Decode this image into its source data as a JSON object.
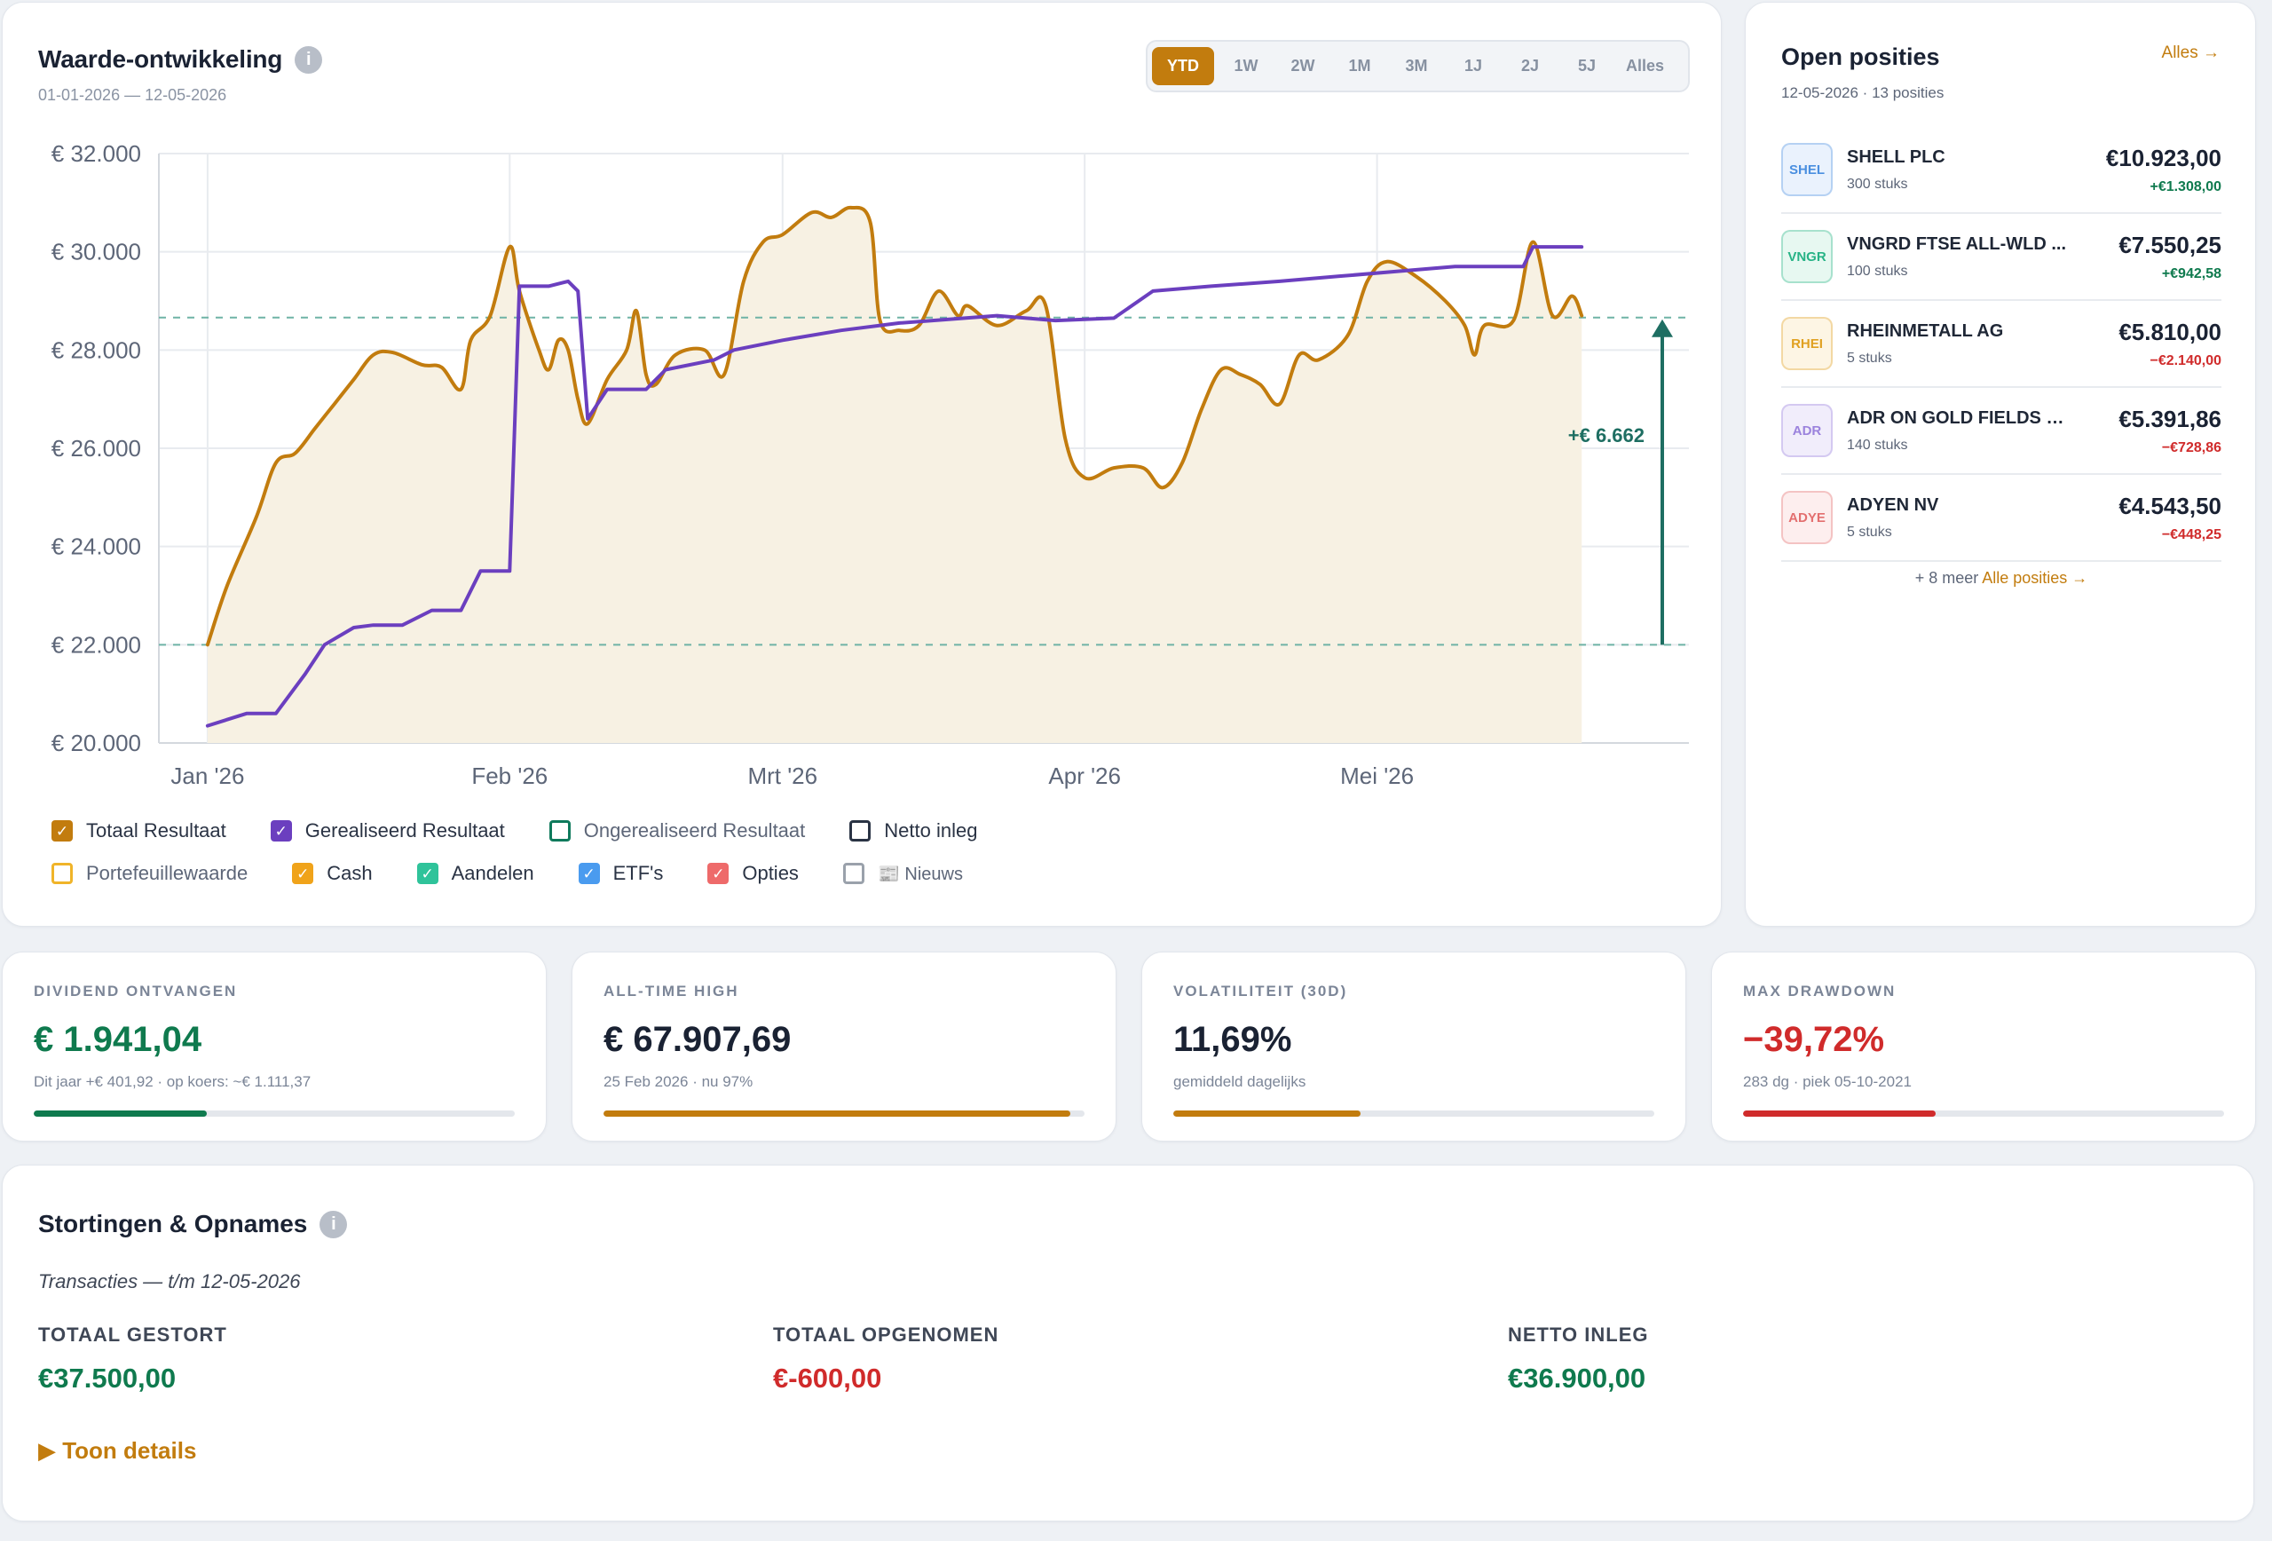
{
  "chart_card": {
    "title": "Waarde-ontwikkeling",
    "info": "i",
    "date_range": "01-01-2026 — 12-05-2026",
    "ranges": [
      "YTD",
      "1W",
      "2W",
      "1M",
      "3M",
      "1J",
      "2J",
      "5J",
      "Alles"
    ],
    "active_range": "YTD",
    "legend": [
      {
        "label": "Totaal Resultaat",
        "color": "#c27c0e",
        "checked": true
      },
      {
        "label": "Gerealiseerd Resultaat",
        "color": "#6b3fbf",
        "checked": true
      },
      {
        "label": "Ongerealiseerd Resultaat",
        "color": "#0f7a5c",
        "checked": false
      },
      {
        "label": "Netto inleg",
        "color": "#2a3344",
        "checked": false
      },
      {
        "label": "Portefeuillewaarde",
        "color": "#f0b429",
        "checked": false
      },
      {
        "label": "Cash",
        "color": "#f0a31a",
        "checked": true
      },
      {
        "label": "Aandelen",
        "color": "#2fc39a",
        "checked": true
      },
      {
        "label": "ETF's",
        "color": "#4a9bef",
        "checked": true
      },
      {
        "label": "Opties",
        "color": "#ee6a6a",
        "checked": true
      },
      {
        "label": "📰 Nieuws",
        "color": "#9aa1ab",
        "checked": false
      }
    ]
  },
  "chart_data": {
    "type": "line",
    "x_labels": [
      "Jan '26",
      "Feb '26",
      "Mrt '26",
      "Apr '26",
      "Mei '26"
    ],
    "y_ticks": [
      "€ 20.000",
      "€ 22.000",
      "€ 24.000",
      "€ 26.000",
      "€ 28.000",
      "€ 30.000",
      "€ 32.000"
    ],
    "ylim": [
      20000,
      32000
    ],
    "xlim": [
      "2025-12-27",
      "2026-06-02"
    ],
    "series": [
      {
        "name": "Totaal Resultaat",
        "color": "#c27c0e",
        "filled": true,
        "points": [
          [
            "2026-01-01",
            22000
          ],
          [
            "2026-01-03",
            23200
          ],
          [
            "2026-01-06",
            24600
          ],
          [
            "2026-01-08",
            25700
          ],
          [
            "2026-01-10",
            25900
          ],
          [
            "2026-01-12",
            26400
          ],
          [
            "2026-01-14",
            26900
          ],
          [
            "2026-01-16",
            27400
          ],
          [
            "2026-01-18",
            27900
          ],
          [
            "2026-01-20",
            27950
          ],
          [
            "2026-01-23",
            27700
          ],
          [
            "2026-01-25",
            27650
          ],
          [
            "2026-01-27",
            27200
          ],
          [
            "2026-01-28",
            28200
          ],
          [
            "2026-01-30",
            28700
          ],
          [
            "2026-02-01",
            30100
          ],
          [
            "2026-02-02",
            29200
          ],
          [
            "2026-02-04",
            28000
          ],
          [
            "2026-02-05",
            27600
          ],
          [
            "2026-02-06",
            28200
          ],
          [
            "2026-02-07",
            28000
          ],
          [
            "2026-02-08",
            27000
          ],
          [
            "2026-02-09",
            26500
          ],
          [
            "2026-02-11",
            27400
          ],
          [
            "2026-02-13",
            28000
          ],
          [
            "2026-02-14",
            28800
          ],
          [
            "2026-02-15",
            27500
          ],
          [
            "2026-02-16",
            27300
          ],
          [
            "2026-02-18",
            27900
          ],
          [
            "2026-02-21",
            28000
          ],
          [
            "2026-02-23",
            27500
          ],
          [
            "2026-02-25",
            29400
          ],
          [
            "2026-02-27",
            30200
          ],
          [
            "2026-03-01",
            30350
          ],
          [
            "2026-03-04",
            30800
          ],
          [
            "2026-03-06",
            30700
          ],
          [
            "2026-03-08",
            30900
          ],
          [
            "2026-03-10",
            30600
          ],
          [
            "2026-03-11",
            28600
          ],
          [
            "2026-03-13",
            28400
          ],
          [
            "2026-03-15",
            28500
          ],
          [
            "2026-03-17",
            29200
          ],
          [
            "2026-03-19",
            28700
          ],
          [
            "2026-03-20",
            28900
          ],
          [
            "2026-03-23",
            28500
          ],
          [
            "2026-03-26",
            28800
          ],
          [
            "2026-03-28",
            28900
          ],
          [
            "2026-03-30",
            26200
          ],
          [
            "2026-04-01",
            25400
          ],
          [
            "2026-04-04",
            25600
          ],
          [
            "2026-04-07",
            25600
          ],
          [
            "2026-04-09",
            25200
          ],
          [
            "2026-04-11",
            25700
          ],
          [
            "2026-04-13",
            26800
          ],
          [
            "2026-04-15",
            27600
          ],
          [
            "2026-04-17",
            27500
          ],
          [
            "2026-04-19",
            27300
          ],
          [
            "2026-04-21",
            26900
          ],
          [
            "2026-04-23",
            27900
          ],
          [
            "2026-04-25",
            27800
          ],
          [
            "2026-04-28",
            28300
          ],
          [
            "2026-04-30",
            29400
          ],
          [
            "2026-05-02",
            29800
          ],
          [
            "2026-05-05",
            29500
          ],
          [
            "2026-05-08",
            29000
          ],
          [
            "2026-05-10",
            28500
          ],
          [
            "2026-05-11",
            27900
          ],
          [
            "2026-05-12",
            28500
          ],
          [
            "2026-05-15",
            28600
          ],
          [
            "2026-05-17",
            30200
          ],
          [
            "2026-05-19",
            28700
          ],
          [
            "2026-05-21",
            29100
          ],
          [
            "2026-05-22",
            28700
          ]
        ]
      },
      {
        "name": "Gerealiseerd Resultaat",
        "color": "#6b3fbf",
        "filled": false,
        "points": [
          [
            "2026-01-01",
            20350
          ],
          [
            "2026-01-05",
            20600
          ],
          [
            "2026-01-08",
            20600
          ],
          [
            "2026-01-11",
            21400
          ],
          [
            "2026-01-13",
            22000
          ],
          [
            "2026-01-16",
            22350
          ],
          [
            "2026-01-18",
            22400
          ],
          [
            "2026-01-21",
            22400
          ],
          [
            "2026-01-24",
            22700
          ],
          [
            "2026-01-27",
            22700
          ],
          [
            "2026-01-29",
            23500
          ],
          [
            "2026-02-01",
            23500
          ],
          [
            "2026-02-02",
            29300
          ],
          [
            "2026-02-05",
            29300
          ],
          [
            "2026-02-07",
            29400
          ],
          [
            "2026-02-08",
            29200
          ],
          [
            "2026-02-09",
            26600
          ],
          [
            "2026-02-11",
            27200
          ],
          [
            "2026-02-15",
            27200
          ],
          [
            "2026-02-17",
            27600
          ],
          [
            "2026-02-22",
            27800
          ],
          [
            "2026-02-24",
            28000
          ],
          [
            "2026-03-01",
            28200
          ],
          [
            "2026-03-07",
            28400
          ],
          [
            "2026-03-13",
            28550
          ],
          [
            "2026-03-23",
            28700
          ],
          [
            "2026-03-29",
            28600
          ],
          [
            "2026-04-04",
            28650
          ],
          [
            "2026-04-08",
            29200
          ],
          [
            "2026-04-14",
            29300
          ],
          [
            "2026-04-21",
            29400
          ],
          [
            "2026-04-27",
            29500
          ],
          [
            "2026-05-03",
            29600
          ],
          [
            "2026-05-09",
            29700
          ],
          [
            "2026-05-16",
            29700
          ],
          [
            "2026-05-17",
            30100
          ],
          [
            "2026-05-22",
            30100
          ]
        ]
      }
    ],
    "reference_lines": [
      22000,
      28662
    ],
    "annotation": "+€ 6.662"
  },
  "positions": {
    "title": "Open posities",
    "all_link": "Alles →",
    "subtitle": "12-05-2026 · 13 posities",
    "items": [
      {
        "ticker": "SHEL",
        "name": "SHELL PLC",
        "qty": "300 stuks",
        "value": "€10.923,00",
        "pl": "+€1.308,00",
        "positive": true,
        "badge_color": "#4a8fe0",
        "badge_bg": "#eaf2fd"
      },
      {
        "ticker": "VNGR",
        "name": "VNGRD FTSE ALL-WLD ...",
        "qty": "100 stuks",
        "value": "€7.550,25",
        "pl": "+€942,58",
        "positive": true,
        "badge_color": "#27b386",
        "badge_bg": "#e7f8f1"
      },
      {
        "ticker": "RHEI",
        "name": "RHEINMETALL AG",
        "qty": "5 stuks",
        "value": "€5.810,00",
        "pl": "−€2.140,00",
        "positive": false,
        "badge_color": "#e0a020",
        "badge_bg": "#fdf5e4"
      },
      {
        "ticker": "ADR",
        "name": "ADR ON GOLD FIELDS LTD",
        "qty": "140 stuks",
        "value": "€5.391,86",
        "pl": "−€728,86",
        "positive": false,
        "badge_color": "#9b82dd",
        "badge_bg": "#f1edfb"
      },
      {
        "ticker": "ADYE",
        "name": "ADYEN NV",
        "qty": "5 stuks",
        "value": "€4.543,50",
        "pl": "−€448,25",
        "positive": false,
        "badge_color": "#e36f6f",
        "badge_bg": "#fdeeee"
      }
    ],
    "more_text": "+ 8 meer",
    "more_link": "Alle posities →"
  },
  "stats": [
    {
      "label": "DIVIDEND ONTVANGEN",
      "value": "€ 1.941,04",
      "sub": "Dit jaar +€ 401,92 · op koers: ~€ 1.111,37",
      "color": "#0f7a4e",
      "fill": 0.36,
      "fill_color": "#0f7a4e"
    },
    {
      "label": "ALL-TIME HIGH",
      "value": "€ 67.907,69",
      "sub": "25 Feb 2026 · nu 97%",
      "color": "#1a2233",
      "fill": 0.97,
      "fill_color": "#c27c0e"
    },
    {
      "label": "VOLATILITEIT (30D)",
      "value": "11,69%",
      "sub": "gemiddeld dagelijks",
      "color": "#1a2233",
      "fill": 0.39,
      "fill_color": "#c27c0e"
    },
    {
      "label": "MAX DRAWDOWN",
      "value": "−39,72%",
      "sub": "283 dg · piek 05-10-2021",
      "color": "#d02b2b",
      "fill": 0.4,
      "fill_color": "#d02b2b"
    }
  ],
  "deposits": {
    "title": "Stortingen & Opnames",
    "info": "i",
    "subtitle": "Transacties — t/m 12-05-2026",
    "columns": [
      {
        "label": "TOTAAL GESTORT",
        "value": "€37.500,00",
        "color": "#0f7a4e"
      },
      {
        "label": "TOTAAL OPGENOMEN",
        "value": "€-600,00",
        "color": "#d02b2b"
      },
      {
        "label": "NETTO INLEG",
        "value": "€36.900,00",
        "color": "#0f7a4e"
      }
    ],
    "toggle": "▶ Toon details"
  }
}
